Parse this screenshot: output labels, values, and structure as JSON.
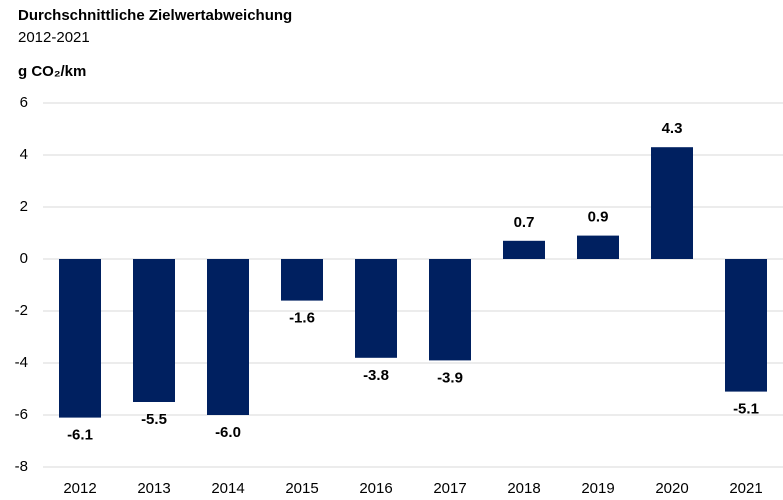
{
  "chart_data": {
    "type": "bar",
    "title": "Durchschnittliche Zielwertabweichung",
    "subtitle": "2012-2021",
    "y_axis_label": "g CO₂/km",
    "categories": [
      "2012",
      "2013",
      "2014",
      "2015",
      "2016",
      "2017",
      "2018",
      "2019",
      "2020",
      "2021"
    ],
    "values": [
      -6.1,
      -5.5,
      -6.0,
      -1.6,
      -3.8,
      -3.9,
      0.7,
      0.9,
      4.3,
      -5.1
    ],
    "value_labels": [
      "-6.1",
      "-5.5",
      "-6.0",
      "-1.6",
      "-3.8",
      "-3.9",
      "0.7",
      "0.9",
      "4.3",
      "-5.1"
    ],
    "color": "#002060",
    "ylim": [
      -8,
      6
    ],
    "yticks": [
      6,
      4,
      2,
      0,
      -2,
      -4,
      -6,
      -8
    ],
    "grid": true
  }
}
